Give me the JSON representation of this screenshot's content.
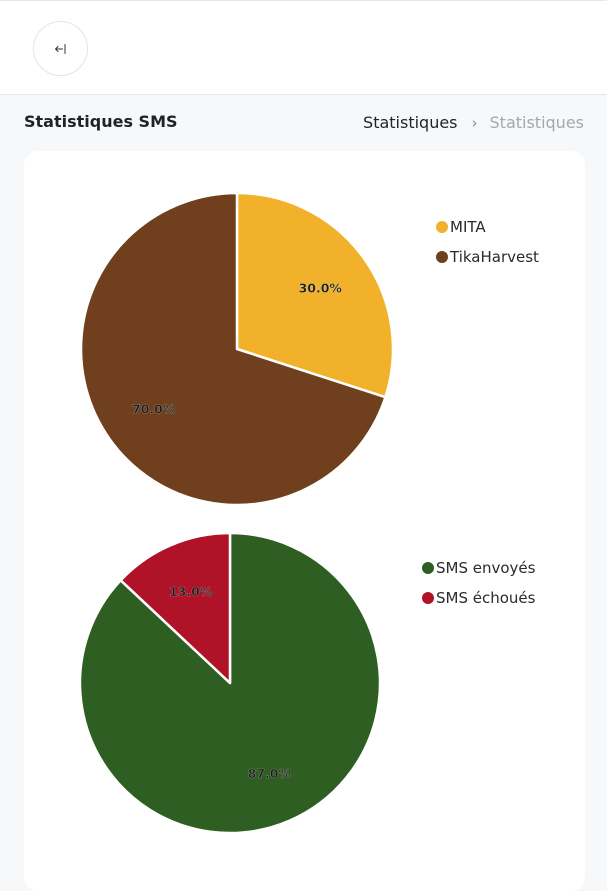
{
  "header": {
    "back_icon": "collapse-left-icon"
  },
  "page": {
    "title": "Statistiques SMS",
    "breadcrumb": [
      "Statistiques",
      "Statistiques"
    ],
    "breadcrumb_separator": "›"
  },
  "chart_data": [
    {
      "type": "pie",
      "labels": [
        "MITA",
        "TikaHarvest"
      ],
      "values": [
        30.0,
        70.0
      ],
      "percent_labels": [
        "30.0%",
        "70.0%"
      ],
      "colors": [
        "#f2b12a",
        "#70401e"
      ],
      "legend_position": "right"
    },
    {
      "type": "pie",
      "labels": [
        "SMS envoyés",
        "SMS échoués"
      ],
      "values": [
        87.0,
        13.0
      ],
      "percent_labels": [
        "87.0%",
        "13.0%"
      ],
      "colors": [
        "#2f5e23",
        "#b01327"
      ],
      "legend_position": "right"
    }
  ]
}
